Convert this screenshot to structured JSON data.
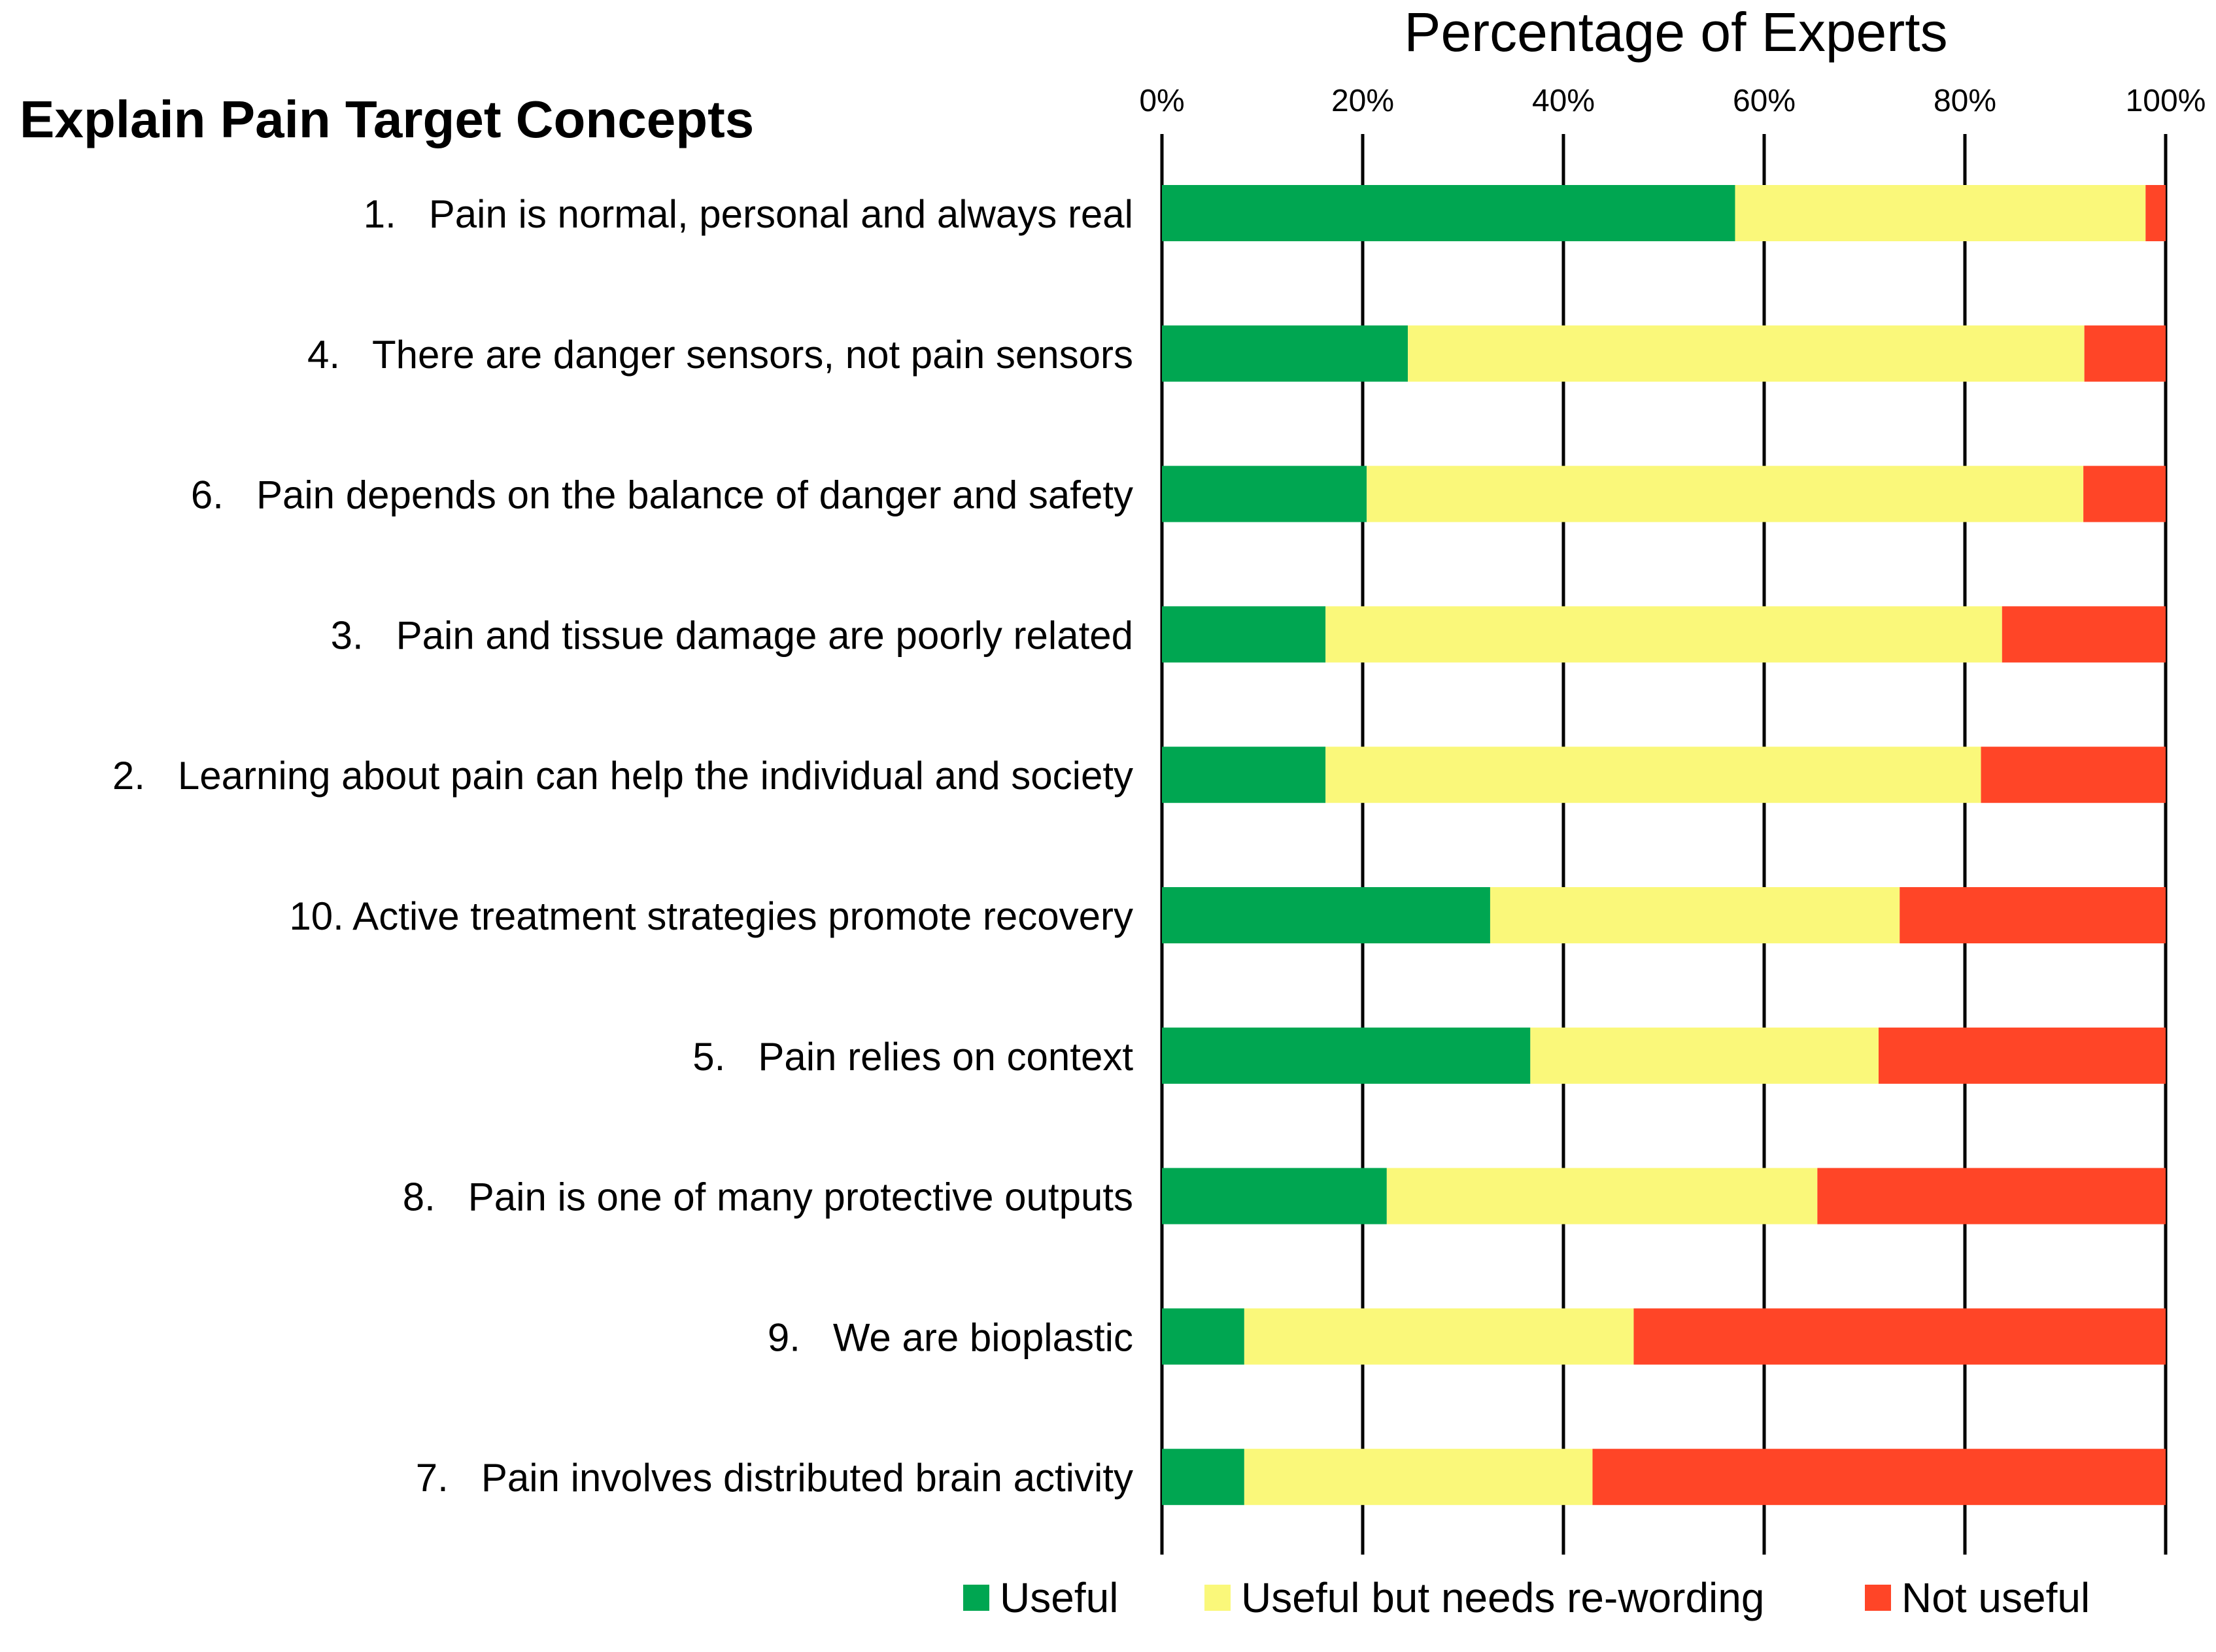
{
  "chart_data": {
    "type": "bar",
    "orientation": "horizontal",
    "stacked": true,
    "title": "Explain Pain Target Concepts",
    "xlabel": "Percentage of Experts",
    "ylabel": "",
    "xlim": [
      0,
      100
    ],
    "x_axis_position": "top",
    "ticks": [
      {
        "value": 0,
        "label": "0%"
      },
      {
        "value": 20,
        "label": "20%"
      },
      {
        "value": 40,
        "label": "40%"
      },
      {
        "value": 60,
        "label": "60%"
      },
      {
        "value": 80,
        "label": "80%"
      },
      {
        "value": 100,
        "label": "100%"
      }
    ],
    "grid": true,
    "legend_position": "bottom",
    "categories": [
      "1.   Pain is normal, personal and always real",
      "4.   There are danger sensors, not pain sensors",
      "6.   Pain depends on the balance of danger and safety",
      "3.   Pain and tissue damage are poorly related",
      "2.   Learning about pain can help the individual and society",
      "10. Active treatment strategies promote recovery",
      "5.   Pain relies on context",
      "8.   Pain is one of many protective outputs",
      "9.   We are bioplastic",
      "7.   Pain involves distributed brain activity"
    ],
    "series": [
      {
        "name": "Useful",
        "color": "#00A651",
        "values": [
          57.1,
          24.5,
          20.4,
          16.3,
          16.3,
          32.7,
          36.7,
          22.4,
          8.2,
          8.2
        ]
      },
      {
        "name": "Useful but needs re-wording",
        "color": "#FAF87A",
        "values": [
          40.9,
          67.4,
          71.4,
          67.4,
          65.3,
          40.8,
          34.7,
          42.9,
          38.8,
          34.7
        ]
      },
      {
        "name": "Not useful",
        "color": "#FF4527",
        "values": [
          2.0,
          8.1,
          8.2,
          16.3,
          18.4,
          26.5,
          28.6,
          34.7,
          53.0,
          57.1
        ]
      }
    ]
  }
}
